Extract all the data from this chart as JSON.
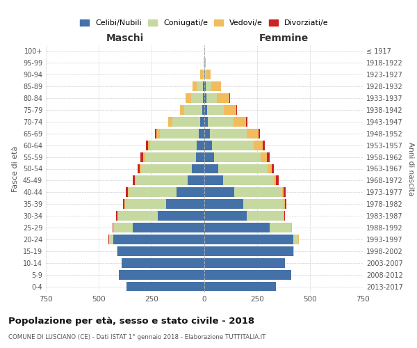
{
  "age_groups": [
    "0-4",
    "5-9",
    "10-14",
    "15-19",
    "20-24",
    "25-29",
    "30-34",
    "35-39",
    "40-44",
    "45-49",
    "50-54",
    "55-59",
    "60-64",
    "65-69",
    "70-74",
    "75-79",
    "80-84",
    "85-89",
    "90-94",
    "95-99",
    "100+"
  ],
  "birth_years": [
    "2013-2017",
    "2008-2012",
    "2003-2007",
    "1998-2002",
    "1993-1997",
    "1988-1992",
    "1983-1987",
    "1978-1982",
    "1973-1977",
    "1968-1972",
    "1963-1967",
    "1958-1962",
    "1953-1957",
    "1948-1952",
    "1943-1947",
    "1938-1942",
    "1933-1937",
    "1928-1932",
    "1923-1927",
    "1918-1922",
    "≤ 1917"
  ],
  "male_celibe": [
    370,
    405,
    390,
    410,
    430,
    340,
    220,
    180,
    130,
    80,
    60,
    40,
    35,
    25,
    20,
    10,
    8,
    5,
    0,
    0,
    0
  ],
  "male_coniugato": [
    0,
    0,
    0,
    5,
    20,
    90,
    190,
    195,
    230,
    245,
    240,
    240,
    220,
    185,
    130,
    85,
    55,
    30,
    8,
    2,
    0
  ],
  "male_vedovo": [
    0,
    0,
    0,
    0,
    2,
    2,
    2,
    3,
    3,
    5,
    5,
    10,
    12,
    18,
    20,
    20,
    25,
    20,
    12,
    2,
    0
  ],
  "male_divorziato": [
    0,
    0,
    0,
    0,
    2,
    3,
    5,
    8,
    8,
    10,
    10,
    12,
    8,
    5,
    2,
    0,
    0,
    0,
    0,
    0,
    0
  ],
  "female_celibe": [
    340,
    410,
    380,
    420,
    420,
    310,
    200,
    185,
    140,
    90,
    65,
    45,
    35,
    25,
    18,
    12,
    10,
    5,
    2,
    0,
    0
  ],
  "female_coniugato": [
    0,
    0,
    0,
    5,
    25,
    100,
    175,
    190,
    230,
    240,
    235,
    220,
    200,
    175,
    120,
    80,
    50,
    28,
    8,
    2,
    0
  ],
  "female_vedovo": [
    0,
    0,
    0,
    0,
    2,
    3,
    3,
    5,
    6,
    10,
    18,
    30,
    40,
    55,
    60,
    60,
    60,
    45,
    20,
    5,
    1
  ],
  "female_divorziato": [
    0,
    0,
    0,
    0,
    2,
    3,
    5,
    8,
    10,
    12,
    12,
    15,
    10,
    8,
    5,
    3,
    2,
    2,
    0,
    0,
    0
  ],
  "colors": {
    "celibe": "#4472a8",
    "coniugato": "#c5d9a0",
    "vedovo": "#f0bc5e",
    "divorziato": "#cc2222"
  },
  "xlim": 750,
  "title": "Popolazione per età, sesso e stato civile - 2018",
  "subtitle": "COMUNE DI LUSCIANO (CE) - Dati ISTAT 1° gennaio 2018 - Elaborazione TUTTITALIA.IT",
  "ylabel_left": "Fasce di età",
  "ylabel_right": "Anni di nascita",
  "xlabel_maschi": "Maschi",
  "xlabel_femmine": "Femmine"
}
